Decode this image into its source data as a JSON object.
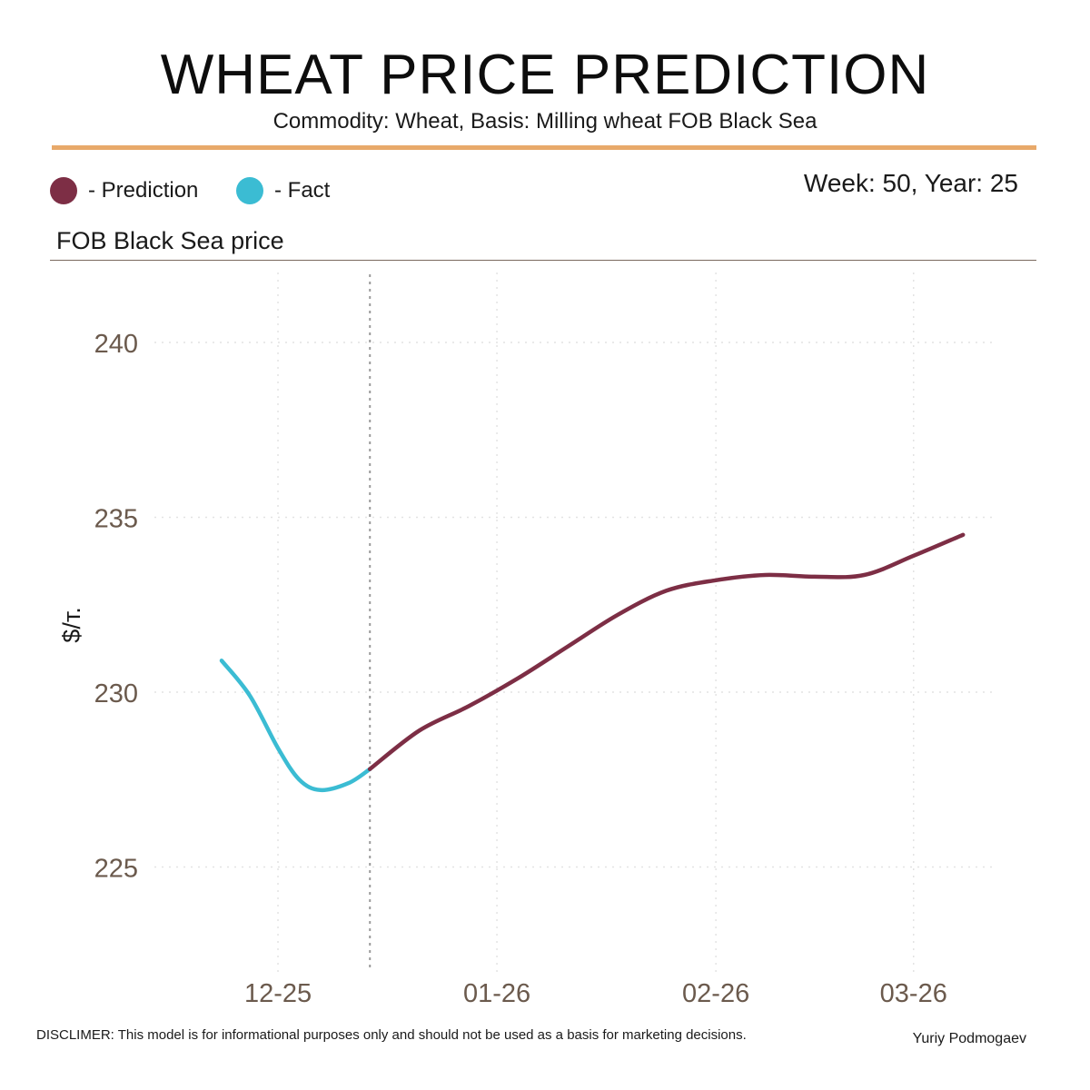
{
  "header": {
    "title": "WHEAT PRICE PREDICTION",
    "subtitle": "Commodity: Wheat, Basis: Milling wheat FOB Black Sea",
    "week_label": "Week: 50, Year: 25",
    "section_label": "FOB Black Sea price"
  },
  "legend": {
    "prediction_label": "- Prediction",
    "fact_label": "- Fact"
  },
  "footer": {
    "disclaimer": "DISCLIMER:  This model is for informational purposes only and should not be used as a basis for marketing decisions.",
    "author": "Yuriy Podmogaev"
  },
  "colors": {
    "prediction": "#7d2e45",
    "fact": "#3bbcd3",
    "accent": "#e8a96a",
    "tick_text": "#6b5a4d"
  },
  "chart_data": {
    "type": "line",
    "title": "FOB Black Sea price",
    "xlabel": "",
    "ylabel": "$/т.",
    "ylim": [
      222,
      242
    ],
    "xlim": [
      -2.5,
      14.5
    ],
    "yticks": [
      225,
      230,
      235,
      240
    ],
    "xticks": [
      {
        "label": "12-25",
        "x": 0
      },
      {
        "label": "01-26",
        "x": 4.43
      },
      {
        "label": "02-26",
        "x": 8.86
      },
      {
        "label": "03-26",
        "x": 12.86
      }
    ],
    "current_week_marker_x": 1.86,
    "grid": true,
    "series": [
      {
        "name": "Fact",
        "x": [
          -1.14,
          -0.57,
          0,
          0.43,
          0.86,
          1.43,
          1.86
        ],
        "y": [
          230.9,
          229.9,
          228.4,
          227.5,
          227.2,
          227.4,
          227.8
        ]
      },
      {
        "name": "Prediction",
        "x": [
          1.86,
          2.86,
          3.86,
          4.86,
          5.86,
          6.86,
          7.86,
          8.86,
          9.86,
          10.86,
          11.86,
          12.86,
          13.86
        ],
        "y": [
          227.8,
          228.9,
          229.6,
          230.4,
          231.3,
          232.2,
          232.9,
          233.2,
          233.35,
          233.3,
          233.35,
          233.9,
          234.5
        ]
      }
    ]
  }
}
